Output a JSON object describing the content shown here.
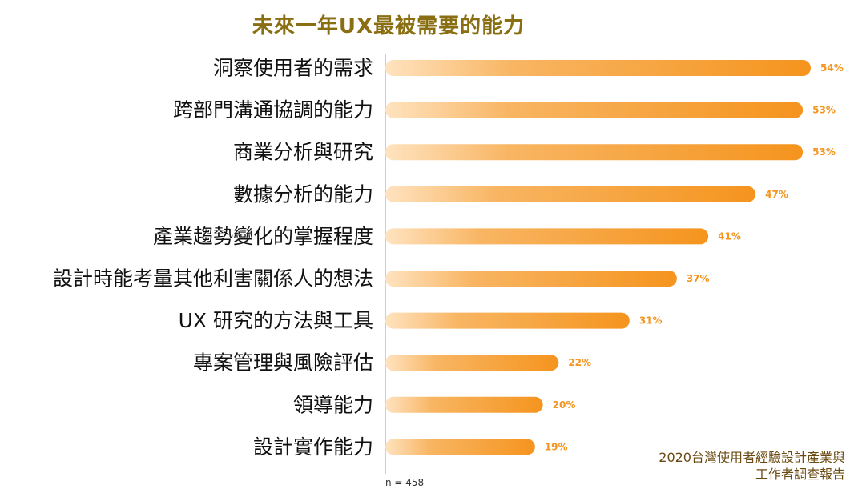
{
  "chart_data": {
    "type": "bar",
    "orientation": "horizontal",
    "title": "未來一年UX最被需要的能力",
    "categories": [
      "洞察使用者的需求",
      "跨部門溝通協調的能力",
      "商業分析與研究",
      "數據分析的能力",
      "產業趨勢變化的掌握程度",
      "設計時能考量其他利害關係人的想法",
      "UX 研究的方法與工具",
      "專案管理與風險評估",
      "領導能力",
      "設計實作能力"
    ],
    "values": [
      54,
      53,
      53,
      47,
      41,
      37,
      31,
      22,
      20,
      19
    ],
    "value_labels": [
      "54%",
      "53%",
      "53%",
      "47%",
      "41%",
      "37%",
      "31%",
      "22%",
      "20%",
      "19%"
    ],
    "unit": "%",
    "xlim": [
      0,
      58
    ],
    "grid": false,
    "legend": "none",
    "bar_color_start": "#ffe3c0",
    "bar_color_end": "#f5941e",
    "label_color": "#f5941e",
    "title_color": "#8a6e12",
    "sample_note": "n = 458",
    "source_lines": [
      "2020台灣使用者經驗設計產業與",
      "工作者調查報告"
    ]
  }
}
